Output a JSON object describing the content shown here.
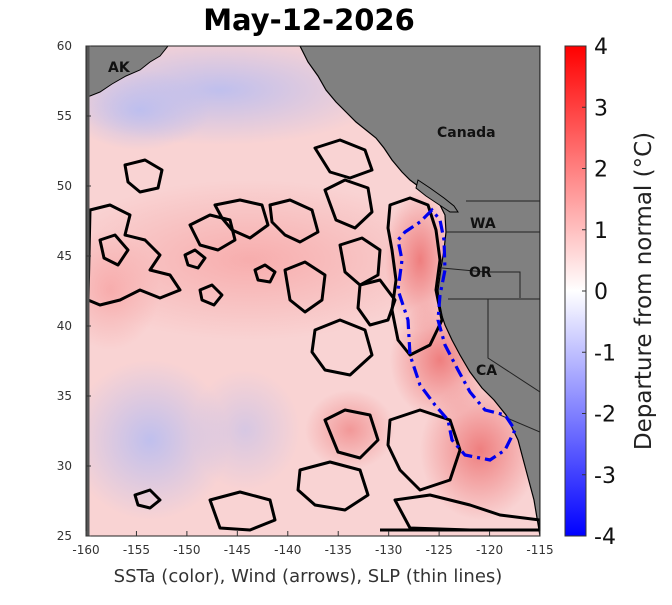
{
  "title": "May-12-2026",
  "xlabel": "SSTa (color), Wind (arrows), SLP (thin lines)",
  "x_ticks": [
    "-160",
    "-155",
    "-150",
    "-145",
    "-140",
    "-135",
    "-130",
    "-125",
    "-120",
    "-115"
  ],
  "y_ticks": [
    "60",
    "55",
    "50",
    "45",
    "40",
    "35",
    "30",
    "25"
  ],
  "colorbar": {
    "label": "Departure from normal (°C)",
    "ticks": [
      "4",
      "3",
      "2",
      "1",
      "0",
      "-1",
      "-2",
      "-3",
      "-4"
    ],
    "color_high": "#ff0000",
    "color_zero": "#ffffff",
    "color_low": "#0000ff"
  },
  "regions": {
    "ak": "AK",
    "canada": "Canada",
    "wa": "WA",
    "or": "OR",
    "ca": "CA"
  },
  "colors": {
    "land": "#808080",
    "warm_ocean": "#f9c8c8",
    "hot_coast": "#f08a8a",
    "cool_ocean": "#dfe0f6",
    "contour": "#000000",
    "dashed_outline": "#0000ee"
  }
}
